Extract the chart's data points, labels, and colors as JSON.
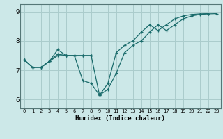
{
  "title": "",
  "xlabel": "Humidex (Indice chaleur)",
  "bg_color": "#cce8e8",
  "grid_color": "#aacccc",
  "line_color": "#1a6b6b",
  "xlim": [
    -0.5,
    23.5
  ],
  "ylim": [
    5.7,
    9.25
  ],
  "yticks": [
    6,
    7,
    8,
    9
  ],
  "xticks": [
    0,
    1,
    2,
    3,
    4,
    5,
    6,
    7,
    8,
    9,
    10,
    11,
    12,
    13,
    14,
    15,
    16,
    17,
    18,
    19,
    20,
    21,
    22,
    23
  ],
  "line1_x": [
    0,
    1,
    2,
    3,
    4,
    5,
    6,
    7,
    8,
    9,
    10,
    11,
    12,
    13,
    14,
    15,
    16,
    17,
    18,
    19,
    20,
    21,
    22,
    23
  ],
  "line1_y": [
    7.35,
    7.1,
    7.1,
    7.3,
    7.7,
    7.5,
    7.5,
    7.5,
    7.5,
    6.15,
    6.35,
    6.9,
    7.6,
    7.85,
    8.0,
    8.3,
    8.55,
    8.35,
    8.55,
    8.75,
    8.85,
    8.9,
    8.92,
    8.93
  ],
  "line2_x": [
    0,
    1,
    2,
    3,
    4,
    5,
    6,
    7,
    8,
    9,
    10,
    11,
    12,
    13,
    14,
    15,
    16,
    17,
    18,
    19,
    20,
    21,
    22
  ],
  "line2_y": [
    7.35,
    7.1,
    7.1,
    7.3,
    7.55,
    7.5,
    7.5,
    6.65,
    6.55,
    6.15,
    6.55,
    7.6,
    7.85,
    8.0,
    8.3,
    8.55,
    8.35,
    8.55,
    8.75,
    8.85,
    8.9,
    8.92,
    8.93
  ],
  "line3_x": [
    0,
    1,
    2,
    3,
    4,
    5,
    6,
    7,
    8
  ],
  "line3_y": [
    7.35,
    7.1,
    7.1,
    7.3,
    7.5,
    7.5,
    7.5,
    7.5,
    7.5
  ]
}
